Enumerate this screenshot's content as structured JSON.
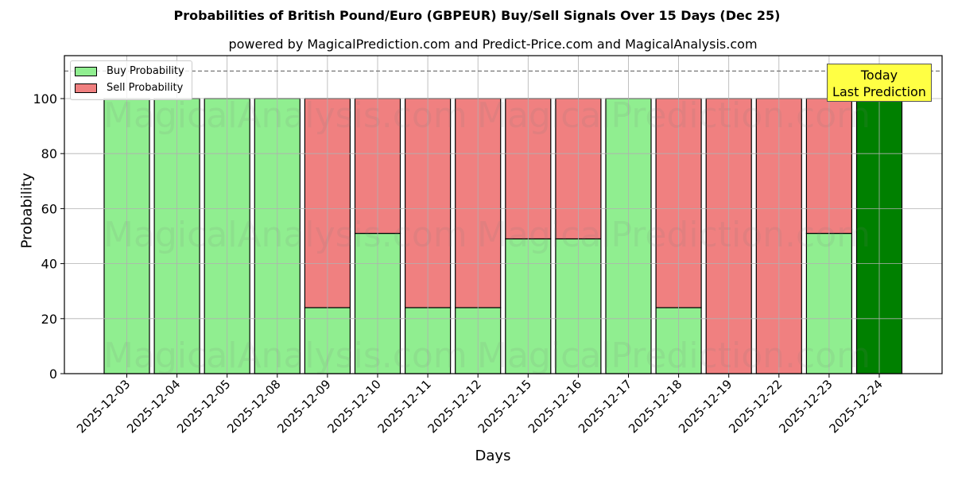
{
  "header": {
    "title": "Probabilities of British Pound/Euro (GBPEUR) Buy/Sell Signals Over 15 Days (Dec 25)",
    "subtitle": "powered by MagicalPrediction.com and Predict-Price.com and MagicalAnalysis.com"
  },
  "legend": {
    "buy_label": "Buy Probability",
    "sell_label": "Sell Probability"
  },
  "annotation": {
    "line1": "Today",
    "line2": "Last Prediction"
  },
  "axes": {
    "xlabel": "Days",
    "ylabel": "Probability",
    "yticks": [
      "0",
      "20",
      "40",
      "60",
      "80",
      "100"
    ]
  },
  "colors": {
    "buy": "#90ee90",
    "sell": "#f08080",
    "today": "#008000",
    "annotation_bg": "#ffff44"
  },
  "watermarks": [
    "MagicalAnalysis.com",
    "MagicalPrediction.com"
  ],
  "chart_data": {
    "type": "bar",
    "stacked": true,
    "title": "Probabilities of British Pound/Euro (GBPEUR) Buy/Sell Signals Over 15 Days (Dec 25)",
    "subtitle": "powered by MagicalPrediction.com and Predict-Price.com and MagicalAnalysis.com",
    "xlabel": "Days",
    "ylabel": "Probability",
    "ylim": [
      0,
      115
    ],
    "grid": true,
    "legend_position": "upper left",
    "reference_line": {
      "y": 110,
      "style": "dashed"
    },
    "categories": [
      "2025-12-03",
      "2025-12-04",
      "2025-12-05",
      "2025-12-08",
      "2025-12-09",
      "2025-12-10",
      "2025-12-11",
      "2025-12-12",
      "2025-12-15",
      "2025-12-16",
      "2025-12-17",
      "2025-12-18",
      "2025-12-19",
      "2025-12-22",
      "2025-12-23",
      "2025-12-24"
    ],
    "series": [
      {
        "name": "Buy Probability",
        "values": [
          100,
          100,
          100,
          100,
          24,
          51,
          24,
          24,
          49,
          49,
          100,
          24,
          0,
          0,
          51,
          100
        ]
      },
      {
        "name": "Sell Probability",
        "values": [
          0,
          0,
          0,
          0,
          76,
          49,
          76,
          76,
          51,
          51,
          0,
          76,
          100,
          100,
          49,
          0
        ]
      }
    ],
    "annotations": [
      {
        "text": "Today\nLast Prediction",
        "x": "2025-12-24"
      }
    ]
  }
}
